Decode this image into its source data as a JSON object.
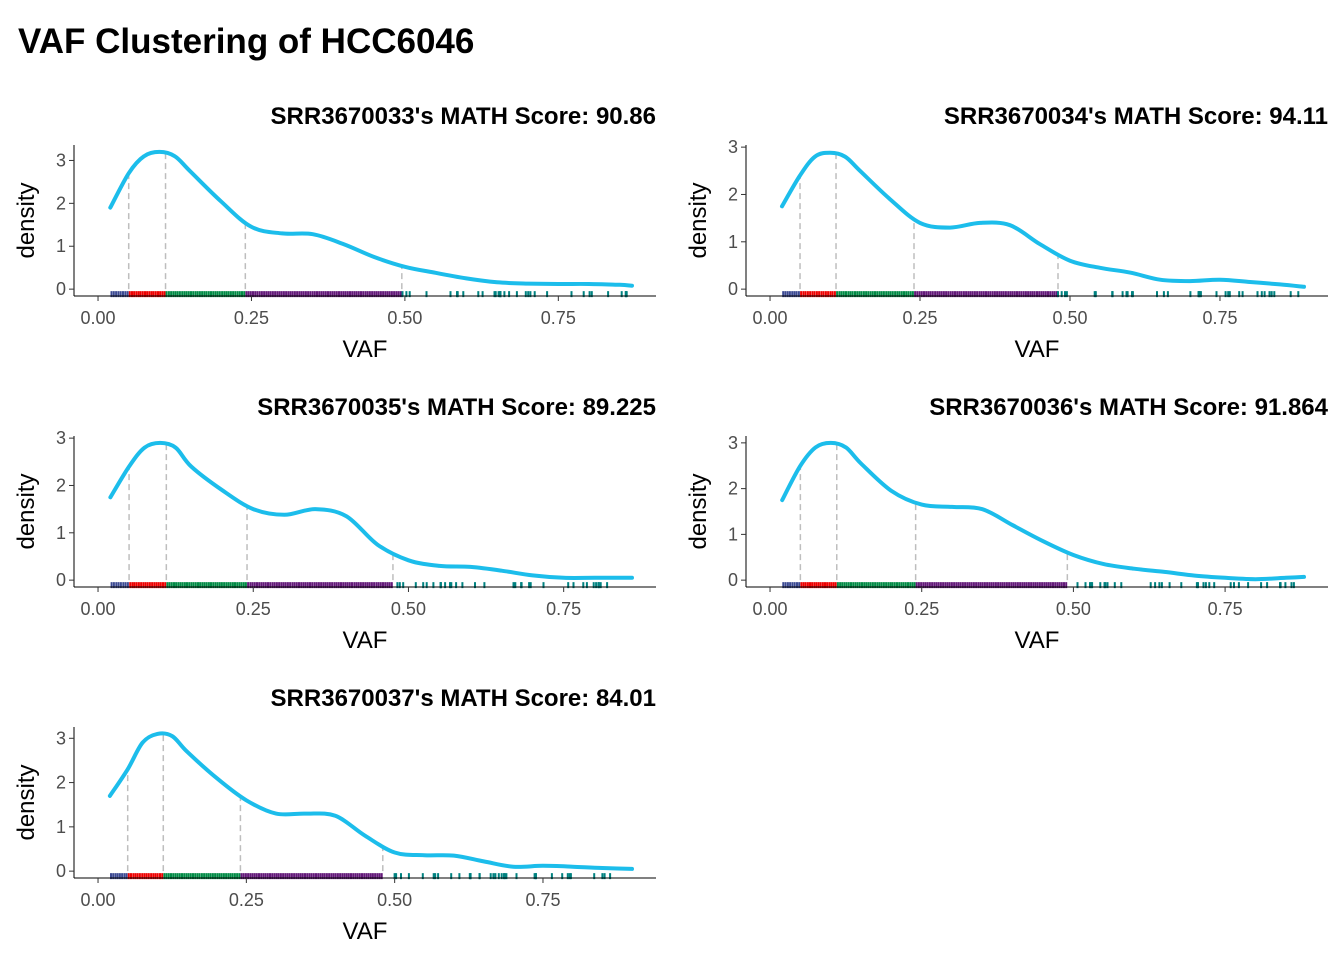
{
  "title": "VAF Clustering of HCC6046",
  "colors": {
    "density_line": "#1CBDEB",
    "cutoff_line": "#BEBEBE",
    "axis": "#000000",
    "tick_label": "#4D4D4D",
    "clusters": [
      "#3B4992",
      "#EE0000",
      "#008B45",
      "#631879",
      "#008280"
    ]
  },
  "chart_data": [
    {
      "type": "line",
      "title": "SRR3670033's MATH Score: 90.86",
      "xlabel": "VAF",
      "ylabel": "density",
      "xlim": [
        0.0,
        0.87
      ],
      "ylim": [
        0,
        3.2
      ],
      "x_ticks": [
        0,
        0.25,
        0.5,
        0.75
      ],
      "x_tick_labels": [
        "0.00",
        "0.25",
        "0.50",
        "0.75"
      ],
      "y_ticks": [
        0,
        1,
        2,
        3
      ],
      "y_tick_labels": [
        "0",
        "1",
        "2",
        "3"
      ],
      "grid": false,
      "density": {
        "x": [
          0.02,
          0.05,
          0.075,
          0.1,
          0.125,
          0.15,
          0.2,
          0.25,
          0.3,
          0.35,
          0.4,
          0.45,
          0.5,
          0.55,
          0.6,
          0.65,
          0.7,
          0.75,
          0.8,
          0.85,
          0.87
        ],
        "y": [
          1.9,
          2.7,
          3.1,
          3.2,
          3.1,
          2.75,
          2.05,
          1.45,
          1.3,
          1.28,
          1.05,
          0.75,
          0.52,
          0.38,
          0.25,
          0.16,
          0.13,
          0.12,
          0.12,
          0.1,
          0.08
        ]
      },
      "cutoffs": [
        0.05,
        0.11,
        0.24,
        0.495
      ],
      "clusters": [
        {
          "from": 0.02,
          "to": 0.05
        },
        {
          "from": 0.05,
          "to": 0.11
        },
        {
          "from": 0.11,
          "to": 0.24
        },
        {
          "from": 0.24,
          "to": 0.495
        },
        {
          "from": 0.495,
          "to": 0.87
        }
      ]
    },
    {
      "type": "line",
      "title": "SRR3670034's MATH Score: 94.11",
      "xlabel": "VAF",
      "ylabel": "density",
      "xlim": [
        0.0,
        0.89
      ],
      "ylim": [
        0,
        2.9
      ],
      "x_ticks": [
        0,
        0.25,
        0.5,
        0.75
      ],
      "x_tick_labels": [
        "0.00",
        "0.25",
        "0.50",
        "0.75"
      ],
      "y_ticks": [
        0,
        1,
        2,
        3
      ],
      "y_tick_labels": [
        "0",
        "1",
        "2",
        "3"
      ],
      "grid": false,
      "density": {
        "x": [
          0.02,
          0.05,
          0.075,
          0.1,
          0.125,
          0.15,
          0.2,
          0.25,
          0.3,
          0.35,
          0.4,
          0.45,
          0.5,
          0.55,
          0.6,
          0.65,
          0.7,
          0.75,
          0.8,
          0.85,
          0.89
        ],
        "y": [
          1.75,
          2.4,
          2.8,
          2.88,
          2.8,
          2.5,
          1.9,
          1.4,
          1.3,
          1.4,
          1.35,
          0.95,
          0.6,
          0.45,
          0.35,
          0.2,
          0.17,
          0.2,
          0.15,
          0.1,
          0.05
        ]
      },
      "cutoffs": [
        0.05,
        0.11,
        0.24,
        0.48
      ],
      "clusters": [
        {
          "from": 0.02,
          "to": 0.05
        },
        {
          "from": 0.05,
          "to": 0.11
        },
        {
          "from": 0.11,
          "to": 0.24
        },
        {
          "from": 0.24,
          "to": 0.48
        },
        {
          "from": 0.48,
          "to": 0.89
        }
      ]
    },
    {
      "type": "line",
      "title": "SRR3670035's MATH Score: 89.225",
      "xlabel": "VAF",
      "ylabel": "density",
      "xlim": [
        0.0,
        0.86
      ],
      "ylim": [
        0,
        2.9
      ],
      "x_ticks": [
        0,
        0.25,
        0.5,
        0.75
      ],
      "x_tick_labels": [
        "0.00",
        "0.25",
        "0.50",
        "0.75"
      ],
      "y_ticks": [
        0,
        1,
        2,
        3
      ],
      "y_tick_labels": [
        "0",
        "1",
        "2",
        "3"
      ],
      "grid": false,
      "density": {
        "x": [
          0.02,
          0.05,
          0.075,
          0.1,
          0.125,
          0.15,
          0.2,
          0.25,
          0.3,
          0.35,
          0.4,
          0.45,
          0.5,
          0.55,
          0.6,
          0.65,
          0.7,
          0.75,
          0.8,
          0.86
        ],
        "y": [
          1.75,
          2.4,
          2.8,
          2.9,
          2.8,
          2.4,
          1.9,
          1.5,
          1.38,
          1.5,
          1.35,
          0.75,
          0.42,
          0.3,
          0.28,
          0.2,
          0.1,
          0.05,
          0.05,
          0.05
        ]
      },
      "cutoffs": [
        0.05,
        0.11,
        0.24,
        0.475
      ],
      "clusters": [
        {
          "from": 0.02,
          "to": 0.05
        },
        {
          "from": 0.05,
          "to": 0.11
        },
        {
          "from": 0.11,
          "to": 0.24
        },
        {
          "from": 0.24,
          "to": 0.475
        },
        {
          "from": 0.475,
          "to": 0.86
        }
      ]
    },
    {
      "type": "line",
      "title": "SRR3670036's MATH Score: 91.864",
      "xlabel": "VAF",
      "ylabel": "density",
      "xlim": [
        0.0,
        0.88
      ],
      "ylim": [
        0,
        3.0
      ],
      "x_ticks": [
        0,
        0.25,
        0.5,
        0.75
      ],
      "x_tick_labels": [
        "0.00",
        "0.25",
        "0.50",
        "0.75"
      ],
      "y_ticks": [
        0,
        1,
        2,
        3
      ],
      "y_tick_labels": [
        "0",
        "1",
        "2",
        "3"
      ],
      "grid": false,
      "density": {
        "x": [
          0.02,
          0.05,
          0.075,
          0.1,
          0.125,
          0.15,
          0.2,
          0.25,
          0.3,
          0.35,
          0.4,
          0.45,
          0.5,
          0.55,
          0.6,
          0.65,
          0.7,
          0.75,
          0.8,
          0.85,
          0.88
        ],
        "y": [
          1.75,
          2.5,
          2.9,
          3.0,
          2.9,
          2.55,
          1.95,
          1.65,
          1.6,
          1.55,
          1.2,
          0.85,
          0.55,
          0.35,
          0.25,
          0.18,
          0.1,
          0.05,
          0.02,
          0.05,
          0.07
        ]
      },
      "cutoffs": [
        0.05,
        0.11,
        0.24,
        0.49
      ],
      "clusters": [
        {
          "from": 0.02,
          "to": 0.05
        },
        {
          "from": 0.05,
          "to": 0.11
        },
        {
          "from": 0.11,
          "to": 0.24
        },
        {
          "from": 0.24,
          "to": 0.49
        },
        {
          "from": 0.49,
          "to": 0.88
        }
      ]
    },
    {
      "type": "line",
      "title": "SRR3670037's MATH Score: 84.01",
      "xlabel": "VAF",
      "ylabel": "density",
      "xlim": [
        0.0,
        0.9
      ],
      "ylim": [
        0,
        3.1
      ],
      "x_ticks": [
        0,
        0.25,
        0.5,
        0.75
      ],
      "x_tick_labels": [
        "0.00",
        "0.25",
        "0.50",
        "0.75"
      ],
      "y_ticks": [
        0,
        1,
        2,
        3
      ],
      "y_tick_labels": [
        "0",
        "1",
        "2",
        "3"
      ],
      "grid": false,
      "density": {
        "x": [
          0.02,
          0.05,
          0.075,
          0.1,
          0.125,
          0.15,
          0.2,
          0.25,
          0.3,
          0.35,
          0.4,
          0.45,
          0.5,
          0.55,
          0.6,
          0.65,
          0.7,
          0.75,
          0.8,
          0.85,
          0.9
        ],
        "y": [
          1.7,
          2.3,
          2.9,
          3.1,
          3.05,
          2.7,
          2.1,
          1.6,
          1.3,
          1.3,
          1.25,
          0.8,
          0.42,
          0.36,
          0.35,
          0.22,
          0.1,
          0.12,
          0.1,
          0.07,
          0.05
        ]
      },
      "cutoffs": [
        0.05,
        0.11,
        0.24,
        0.48
      ],
      "clusters": [
        {
          "from": 0.02,
          "to": 0.05
        },
        {
          "from": 0.05,
          "to": 0.11
        },
        {
          "from": 0.11,
          "to": 0.24
        },
        {
          "from": 0.24,
          "to": 0.48
        },
        {
          "from": 0.48,
          "to": 0.9
        }
      ]
    }
  ]
}
